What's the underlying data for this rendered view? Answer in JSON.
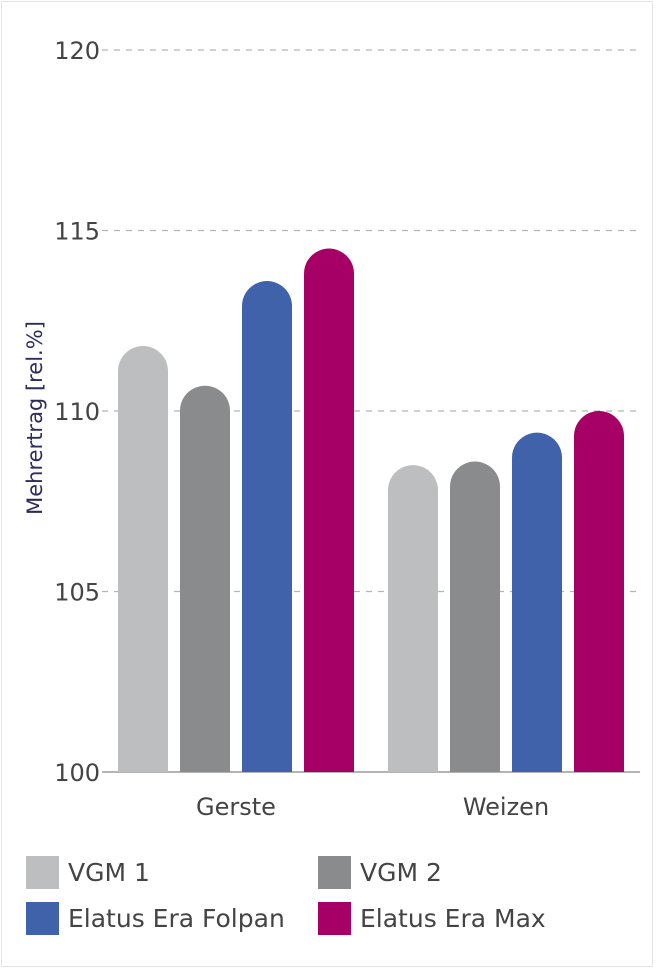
{
  "chart_data": {
    "type": "bar",
    "categories": [
      "Gerste",
      "Weizen"
    ],
    "series": [
      {
        "name": "VGM 1",
        "color": "#bdbebf",
        "values": [
          111.8,
          108.5
        ]
      },
      {
        "name": "VGM 2",
        "color": "#898b8d",
        "values": [
          110.7,
          108.6
        ]
      },
      {
        "name": "Elatus Era Folpan",
        "color": "#4062ab",
        "values": [
          113.6,
          109.4
        ]
      },
      {
        "name": "Elatus Era Max",
        "color": "#a60067",
        "values": [
          114.5,
          110.0
        ]
      }
    ],
    "title": "",
    "xlabel": "",
    "ylabel": "Mehrertrag [rel.%]",
    "ylim": [
      100,
      120
    ],
    "yticks": [
      100,
      105,
      110,
      115,
      120
    ],
    "grid": true,
    "legend_position": "bottom"
  }
}
